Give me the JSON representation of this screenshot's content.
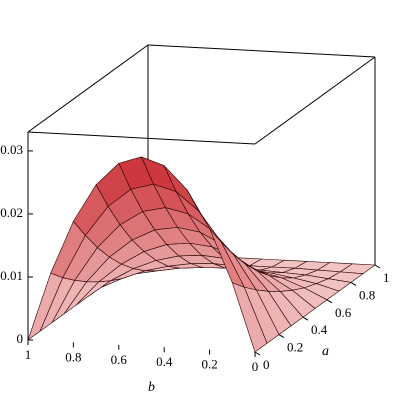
{
  "chart_data": {
    "type": "surface",
    "x_label": "a",
    "y_label": "b",
    "a": [
      0,
      0.1,
      0.2,
      0.3,
      0.4,
      0.5,
      0.6,
      0.7,
      0.8,
      0.9,
      1
    ],
    "b": [
      0,
      0.1,
      0.2,
      0.3,
      0.4,
      0.5,
      0.6,
      0.7,
      0.8,
      0.9,
      1
    ],
    "z": [
      [
        0,
        0.0108,
        0.0192,
        0.0252,
        0.0288,
        0.03,
        0.0288,
        0.0252,
        0.0192,
        0.0108,
        0
      ],
      [
        0,
        0.0087,
        0.0156,
        0.0204,
        0.0233,
        0.0243,
        0.0233,
        0.0204,
        0.0156,
        0.0087,
        0
      ],
      [
        0,
        0.0069,
        0.0123,
        0.0161,
        0.0184,
        0.0192,
        0.0184,
        0.0161,
        0.0123,
        0.0069,
        0
      ],
      [
        0,
        0.0053,
        0.0094,
        0.0123,
        0.0141,
        0.0147,
        0.0141,
        0.0123,
        0.0094,
        0.0053,
        0
      ],
      [
        0,
        0.0039,
        0.0069,
        0.0091,
        0.0104,
        0.0108,
        0.0104,
        0.0091,
        0.0069,
        0.0039,
        0
      ],
      [
        0,
        0.0027,
        0.0048,
        0.0063,
        0.0072,
        0.0075,
        0.0072,
        0.0063,
        0.0048,
        0.0027,
        0
      ],
      [
        0,
        0.0017,
        0.0031,
        0.004,
        0.0046,
        0.0048,
        0.0046,
        0.004,
        0.0031,
        0.0017,
        0
      ],
      [
        0,
        0.001,
        0.0017,
        0.0023,
        0.0026,
        0.0027,
        0.0026,
        0.0023,
        0.0017,
        0.001,
        0
      ],
      [
        0,
        0.0004,
        0.0008,
        0.001,
        0.0012,
        0.0012,
        0.0012,
        0.001,
        0.0008,
        0.0004,
        0
      ],
      [
        0,
        0.0001,
        0.0002,
        0.0003,
        0.0003,
        0.0003,
        0.0003,
        0.0003,
        0.0002,
        0.0001,
        0
      ],
      [
        0,
        0,
        0,
        0,
        0,
        0,
        0,
        0,
        0,
        0,
        0
      ]
    ],
    "xlim": [
      0,
      1
    ],
    "ylim": [
      0,
      1
    ],
    "zlim": [
      0,
      0.033
    ],
    "xticks": [
      0,
      0.2,
      0.4,
      0.6,
      0.8,
      1
    ],
    "yticks": [
      0,
      0.2,
      0.4,
      0.6,
      0.8,
      1
    ],
    "zticks": [
      0,
      0.01,
      0.02,
      0.03
    ],
    "low_color": "#f2c4c4",
    "high_color": "#c8282d",
    "mesh_color": "#2a0000"
  }
}
